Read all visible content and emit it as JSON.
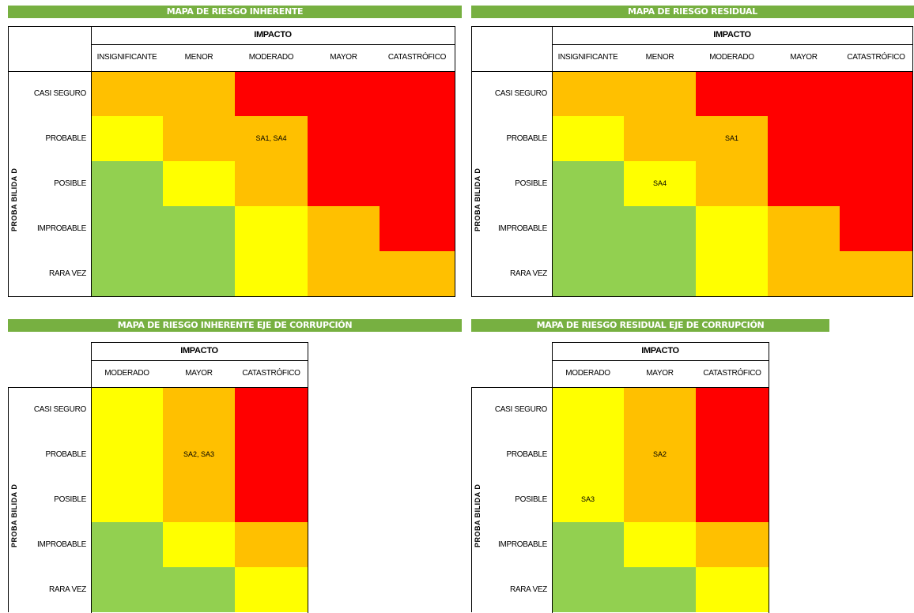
{
  "colors": {
    "green": "#92d050",
    "yellow": "#ffff00",
    "orange": "#ffc000",
    "red": "#ff0000",
    "banner": "#77b041"
  },
  "chart_data": [
    {
      "type": "heatmap",
      "title": "MAPA DE  RIESGO INHERENTE",
      "impact_title": "IMPACTO",
      "probability_title": "PROBA BILIDA D",
      "columns": [
        "INSIGNIFICANTE",
        "MENOR",
        "MODERADO",
        "MAYOR",
        "CATASTRÓFICO"
      ],
      "rows": [
        "CASI SEGURO",
        "PROBABLE",
        "POSIBLE",
        "IMPROBABLE",
        "RARA VEZ"
      ],
      "grid": [
        [
          "orange",
          "orange",
          "red",
          "red",
          "red"
        ],
        [
          "yellow",
          "orange",
          "orange",
          "red",
          "red"
        ],
        [
          "green",
          "yellow",
          "orange",
          "red",
          "red"
        ],
        [
          "green",
          "green",
          "yellow",
          "orange",
          "red"
        ],
        [
          "green",
          "green",
          "yellow",
          "orange",
          "orange"
        ]
      ],
      "labels": [
        {
          "row": 1,
          "col": 2,
          "text": "SA1, SA4"
        }
      ]
    },
    {
      "type": "heatmap",
      "title": "MAPA DE RIESGO RESIDUAL",
      "impact_title": "IMPACTO",
      "probability_title": "PROBA BILIDA D",
      "columns": [
        "INSIGNIFICANTE",
        "MENOR",
        "MODERADO",
        "MAYOR",
        "CATASTRÓFICO"
      ],
      "rows": [
        "CASI SEGURO",
        "PROBABLE",
        "POSIBLE",
        "IMPROBABLE",
        "RARA VEZ"
      ],
      "grid": [
        [
          "orange",
          "orange",
          "red",
          "red",
          "red"
        ],
        [
          "yellow",
          "orange",
          "orange",
          "red",
          "red"
        ],
        [
          "green",
          "yellow",
          "orange",
          "red",
          "red"
        ],
        [
          "green",
          "green",
          "yellow",
          "orange",
          "red"
        ],
        [
          "green",
          "green",
          "yellow",
          "orange",
          "orange"
        ]
      ],
      "labels": [
        {
          "row": 1,
          "col": 2,
          "text": "SA1"
        },
        {
          "row": 2,
          "col": 1,
          "text": "SA4"
        }
      ]
    },
    {
      "type": "heatmap",
      "title": "MAPA DE  RIESGO INHERENTE EJE DE CORRUPCIÓN",
      "impact_title": "IMPACTO",
      "probability_title": "PROBA BILIDA D",
      "columns": [
        "MODERADO",
        "MAYOR",
        "CATASTRÓFICO"
      ],
      "rows": [
        "CASI SEGURO",
        "PROBABLE",
        "POSIBLE",
        "IMPROBABLE",
        "RARA VEZ"
      ],
      "grid": [
        [
          "yellow",
          "orange",
          "red"
        ],
        [
          "yellow",
          "orange",
          "red"
        ],
        [
          "yellow",
          "orange",
          "red"
        ],
        [
          "green",
          "yellow",
          "orange"
        ],
        [
          "green",
          "green",
          "yellow"
        ]
      ],
      "labels": [
        {
          "row": 1,
          "col": 1,
          "text": "SA2, SA3"
        }
      ]
    },
    {
      "type": "heatmap",
      "title": "MAPA DE  RIESGO RESIDUAL EJE DE CORRUPCIÓN",
      "impact_title": "IMPACTO",
      "probability_title": "PROBA BILIDA D",
      "columns": [
        "MODERADO",
        "MAYOR",
        "CATASTRÓFICO"
      ],
      "rows": [
        "CASI SEGURO",
        "PROBABLE",
        "POSIBLE",
        "IMPROBABLE",
        "RARA VEZ"
      ],
      "grid": [
        [
          "yellow",
          "orange",
          "red"
        ],
        [
          "yellow",
          "orange",
          "red"
        ],
        [
          "yellow",
          "orange",
          "red"
        ],
        [
          "green",
          "yellow",
          "orange"
        ],
        [
          "green",
          "green",
          "yellow"
        ]
      ],
      "labels": [
        {
          "row": 1,
          "col": 1,
          "text": "SA2"
        },
        {
          "row": 2,
          "col": 0,
          "text": "SA3"
        }
      ]
    }
  ]
}
